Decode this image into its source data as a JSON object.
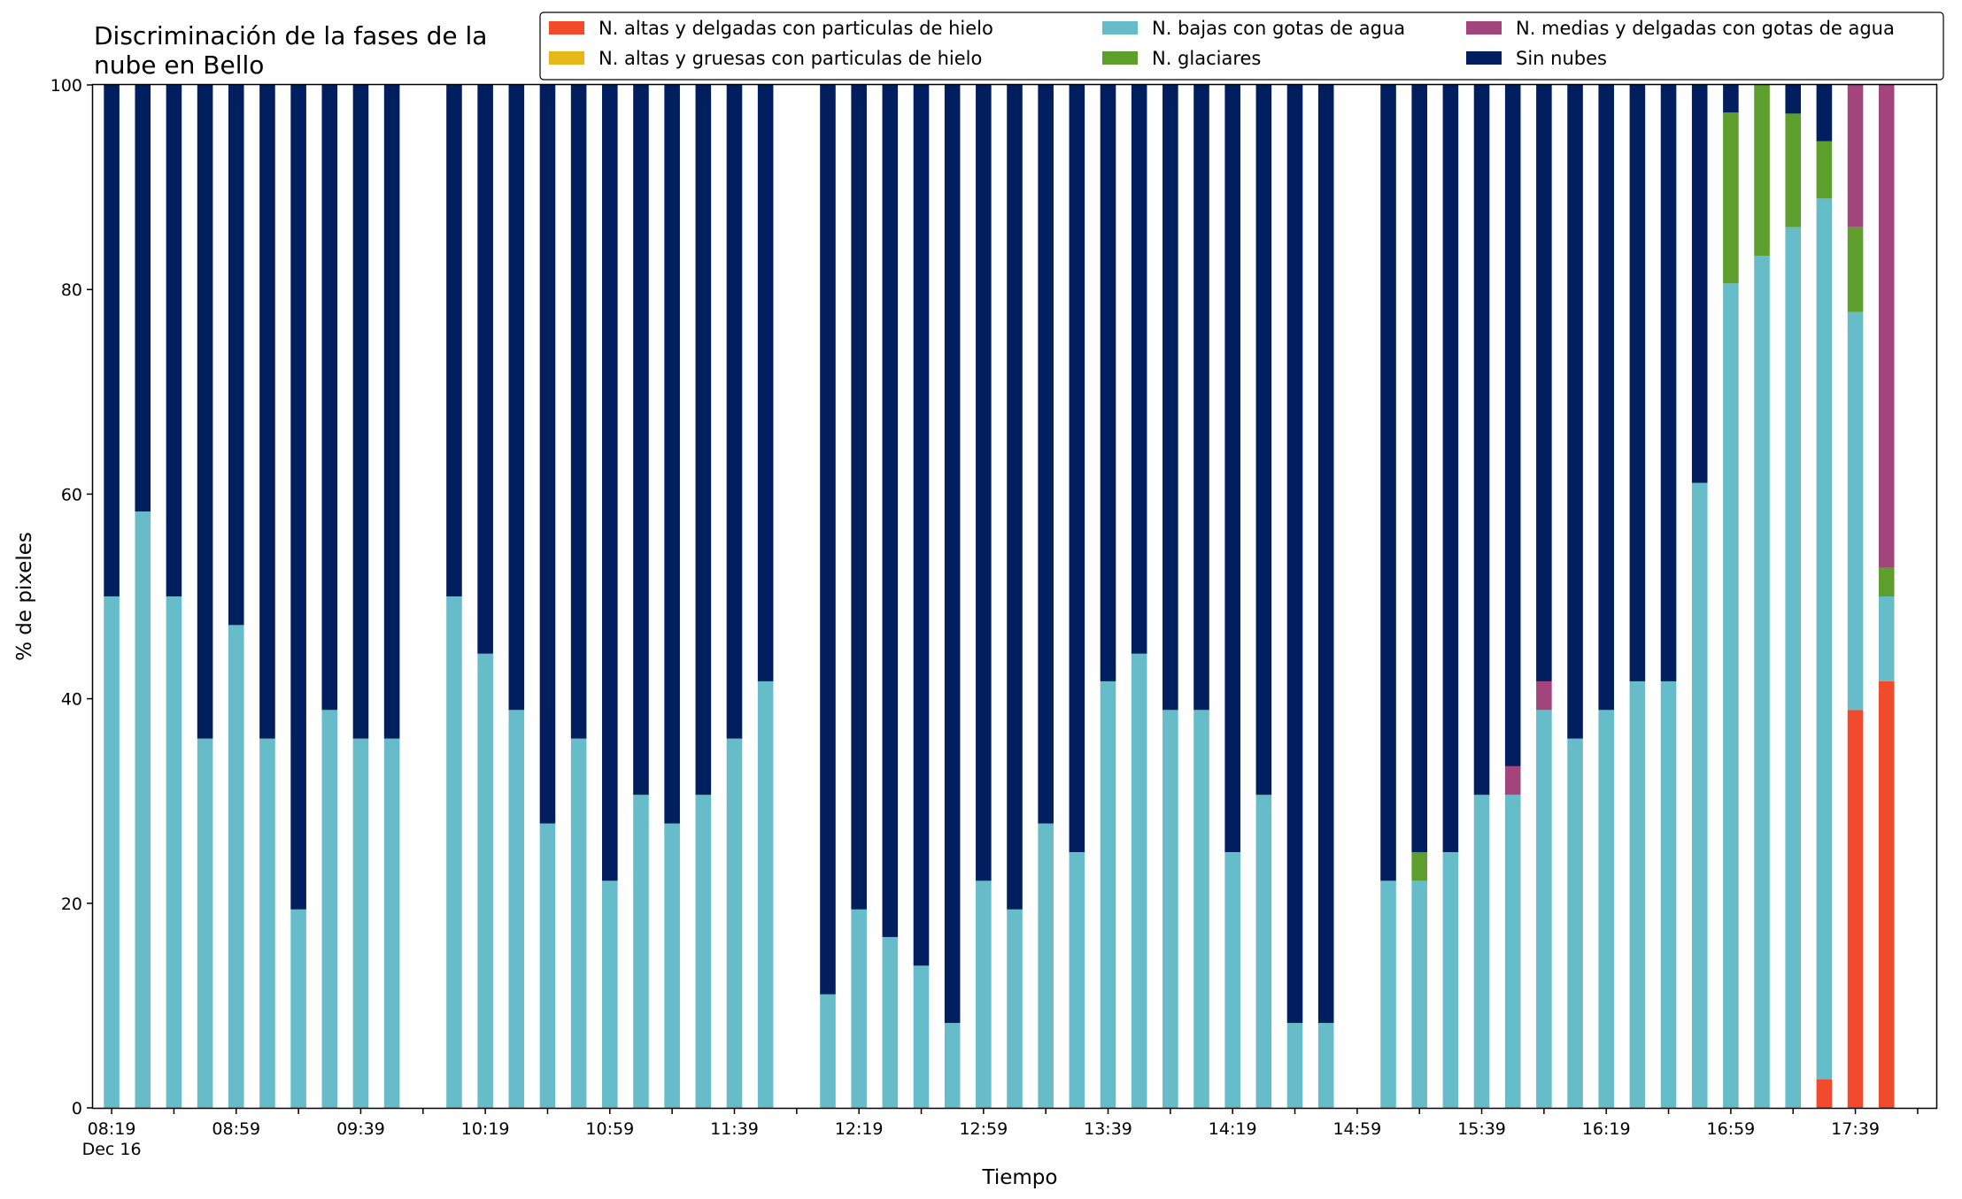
{
  "chart_data": {
    "type": "bar",
    "stacked": true,
    "title": "Discriminación de la fases de la\nnube en Bello",
    "xlabel": "Tiempo",
    "ylabel": "% de pixeles",
    "ylim": [
      0,
      100
    ],
    "yticks": [
      0,
      20,
      40,
      60,
      80,
      100
    ],
    "x_range": [
      -0.6,
      58.6
    ],
    "bar_width": 0.5,
    "xtick_labels": [
      {
        "slot": 0,
        "label": "08:19",
        "sublabel": "Dec 16"
      },
      {
        "slot": 4,
        "label": "08:59"
      },
      {
        "slot": 8,
        "label": "09:39"
      },
      {
        "slot": 12,
        "label": "10:19"
      },
      {
        "slot": 16,
        "label": "10:59"
      },
      {
        "slot": 20,
        "label": "11:39"
      },
      {
        "slot": 24,
        "label": "12:19"
      },
      {
        "slot": 28,
        "label": "12:59"
      },
      {
        "slot": 32,
        "label": "13:39"
      },
      {
        "slot": 36,
        "label": "14:19"
      },
      {
        "slot": 40,
        "label": "14:59"
      },
      {
        "slot": 44,
        "label": "15:39"
      },
      {
        "slot": 48,
        "label": "16:19"
      },
      {
        "slot": 52,
        "label": "16:59"
      },
      {
        "slot": 56,
        "label": "17:39"
      }
    ],
    "legend_position": "top-right",
    "legend_columns": 3,
    "series": [
      {
        "name": "N. altas y delgadas con particulas de hielo",
        "color": "#ef4b2c"
      },
      {
        "name": "N. altas y gruesas con particulas de hielo",
        "color": "#e6b919"
      },
      {
        "name": "N. bajas con gotas de agua",
        "color": "#66bdc9"
      },
      {
        "name": "N. glaciares",
        "color": "#5e9e2d"
      },
      {
        "name": "N. medias y delgadas con gotas de agua",
        "color": "#a1457c"
      },
      {
        "name": "Sin nubes",
        "color": "#011f5e"
      }
    ],
    "bars": [
      {
        "slot": 0,
        "values": [
          0,
          0,
          50.0,
          0,
          0,
          50.0
        ]
      },
      {
        "slot": 1,
        "values": [
          0,
          0,
          58.3,
          0,
          0,
          41.7
        ]
      },
      {
        "slot": 2,
        "values": [
          0,
          0,
          50.0,
          0,
          0,
          50.0
        ]
      },
      {
        "slot": 3,
        "values": [
          0,
          0,
          36.1,
          0,
          0,
          63.9
        ]
      },
      {
        "slot": 4,
        "values": [
          0,
          0,
          47.2,
          0,
          0,
          52.8
        ]
      },
      {
        "slot": 5,
        "values": [
          0,
          0,
          36.1,
          0,
          0,
          63.9
        ]
      },
      {
        "slot": 6,
        "values": [
          0,
          0,
          19.4,
          0,
          0,
          80.6
        ]
      },
      {
        "slot": 7,
        "values": [
          0,
          0,
          38.9,
          0,
          0,
          61.1
        ]
      },
      {
        "slot": 8,
        "values": [
          0,
          0,
          36.1,
          0,
          0,
          63.9
        ]
      },
      {
        "slot": 9,
        "values": [
          0,
          0,
          36.1,
          0,
          0,
          63.9
        ]
      },
      {
        "slot": 11,
        "values": [
          0,
          0,
          50.0,
          0,
          0,
          50.0
        ]
      },
      {
        "slot": 12,
        "values": [
          0,
          0,
          44.4,
          0,
          0,
          55.6
        ]
      },
      {
        "slot": 13,
        "values": [
          0,
          0,
          38.9,
          0,
          0,
          61.1
        ]
      },
      {
        "slot": 14,
        "values": [
          0,
          0,
          27.8,
          0,
          0,
          72.2
        ]
      },
      {
        "slot": 15,
        "values": [
          0,
          0,
          36.1,
          0,
          0,
          63.9
        ]
      },
      {
        "slot": 16,
        "values": [
          0,
          0,
          22.2,
          0,
          0,
          77.8
        ]
      },
      {
        "slot": 17,
        "values": [
          0,
          0,
          30.6,
          0,
          0,
          69.4
        ]
      },
      {
        "slot": 18,
        "values": [
          0,
          0,
          27.8,
          0,
          0,
          72.2
        ]
      },
      {
        "slot": 19,
        "values": [
          0,
          0,
          30.6,
          0,
          0,
          69.4
        ]
      },
      {
        "slot": 20,
        "values": [
          0,
          0,
          36.1,
          0,
          0,
          63.9
        ]
      },
      {
        "slot": 21,
        "values": [
          0,
          0,
          41.7,
          0,
          0,
          58.3
        ]
      },
      {
        "slot": 23,
        "values": [
          0,
          0,
          11.1,
          0,
          0,
          88.9
        ]
      },
      {
        "slot": 24,
        "values": [
          0,
          0,
          19.4,
          0,
          0,
          80.6
        ]
      },
      {
        "slot": 25,
        "values": [
          0,
          0,
          16.7,
          0,
          0,
          83.3
        ]
      },
      {
        "slot": 26,
        "values": [
          0,
          0,
          13.9,
          0,
          0,
          86.1
        ]
      },
      {
        "slot": 27,
        "values": [
          0,
          0,
          8.3,
          0,
          0,
          91.7
        ]
      },
      {
        "slot": 28,
        "values": [
          0,
          0,
          22.2,
          0,
          0,
          77.8
        ]
      },
      {
        "slot": 29,
        "values": [
          0,
          0,
          19.4,
          0,
          0,
          80.6
        ]
      },
      {
        "slot": 30,
        "values": [
          0,
          0,
          27.8,
          0,
          0,
          72.2
        ]
      },
      {
        "slot": 31,
        "values": [
          0,
          0,
          25.0,
          0,
          0,
          75.0
        ]
      },
      {
        "slot": 32,
        "values": [
          0,
          0,
          41.7,
          0,
          0,
          58.3
        ]
      },
      {
        "slot": 33,
        "values": [
          0,
          0,
          44.4,
          0,
          0,
          55.6
        ]
      },
      {
        "slot": 34,
        "values": [
          0,
          0,
          38.9,
          0,
          0,
          61.1
        ]
      },
      {
        "slot": 35,
        "values": [
          0,
          0,
          38.9,
          0,
          0,
          61.1
        ]
      },
      {
        "slot": 36,
        "values": [
          0,
          0,
          25.0,
          0,
          0,
          75.0
        ]
      },
      {
        "slot": 37,
        "values": [
          0,
          0,
          30.6,
          0,
          0,
          69.4
        ]
      },
      {
        "slot": 38,
        "values": [
          0,
          0,
          8.3,
          0,
          0,
          91.7
        ]
      },
      {
        "slot": 39,
        "values": [
          0,
          0,
          8.3,
          0,
          0,
          91.7
        ]
      },
      {
        "slot": 41,
        "values": [
          0,
          0,
          22.2,
          0,
          0,
          77.8
        ]
      },
      {
        "slot": 42,
        "values": [
          0,
          0,
          22.2,
          2.8,
          0,
          75.0
        ]
      },
      {
        "slot": 43,
        "values": [
          0,
          0,
          25.0,
          0,
          0,
          75.0
        ]
      },
      {
        "slot": 44,
        "values": [
          0,
          0,
          30.6,
          0,
          0,
          69.4
        ]
      },
      {
        "slot": 45,
        "values": [
          0,
          0,
          30.6,
          0,
          2.8,
          66.6
        ]
      },
      {
        "slot": 46,
        "values": [
          0,
          0,
          38.9,
          0,
          2.8,
          58.3
        ]
      },
      {
        "slot": 47,
        "values": [
          0,
          0,
          36.1,
          0,
          0,
          63.9
        ]
      },
      {
        "slot": 48,
        "values": [
          0,
          0,
          38.9,
          0,
          0,
          61.1
        ]
      },
      {
        "slot": 49,
        "values": [
          0,
          0,
          41.7,
          0,
          0,
          58.3
        ]
      },
      {
        "slot": 50,
        "values": [
          0,
          0,
          41.7,
          0,
          0,
          58.3
        ]
      },
      {
        "slot": 51,
        "values": [
          0,
          0,
          61.1,
          0,
          0,
          38.9
        ]
      },
      {
        "slot": 52,
        "values": [
          0,
          0,
          80.6,
          16.7,
          0,
          2.7
        ]
      },
      {
        "slot": 53,
        "values": [
          0,
          0,
          83.3,
          16.7,
          0,
          0
        ]
      },
      {
        "slot": 54,
        "values": [
          0,
          0,
          86.1,
          11.1,
          0,
          2.8
        ]
      },
      {
        "slot": 55,
        "values": [
          2.8,
          0,
          86.1,
          5.6,
          0,
          5.5
        ]
      },
      {
        "slot": 56,
        "values": [
          38.9,
          0,
          38.9,
          8.3,
          13.9,
          0
        ]
      },
      {
        "slot": 57,
        "values": [
          41.7,
          0,
          8.3,
          2.8,
          47.2,
          0
        ]
      }
    ]
  }
}
